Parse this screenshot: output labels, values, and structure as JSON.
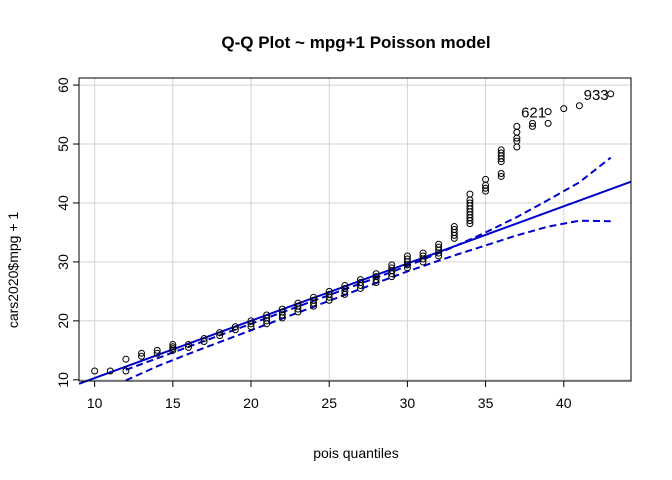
{
  "chart_data": {
    "type": "scatter",
    "title": "Q-Q Plot ~ mpg+1 Poisson model",
    "xlabel": "pois quantiles",
    "ylabel": "cars2020$mpg + 1",
    "xlim": [
      9.0,
      44.3
    ],
    "ylim": [
      9.8,
      61.2
    ],
    "xticks": [
      10,
      15,
      20,
      25,
      30,
      35,
      40
    ],
    "yticks": [
      10,
      20,
      30,
      40,
      50,
      60
    ],
    "grid": true,
    "colors": {
      "points": "#000000",
      "lines": "#0000CD",
      "grid": "#D3D3D3"
    },
    "points": [
      [
        10,
        11.5
      ],
      [
        11,
        11.5
      ],
      [
        12,
        11.5
      ],
      [
        12,
        13.5
      ],
      [
        13,
        14.0
      ],
      [
        13,
        14.5
      ],
      [
        14,
        14.5
      ],
      [
        14,
        15.0
      ],
      [
        15,
        15.0
      ],
      [
        15,
        15.3
      ],
      [
        15,
        15.6
      ],
      [
        15,
        16.0
      ],
      [
        16,
        15.5
      ],
      [
        16,
        16.0
      ],
      [
        17,
        16.5
      ],
      [
        17,
        17.0
      ],
      [
        18,
        17.5
      ],
      [
        18,
        18.0
      ],
      [
        19,
        18.5
      ],
      [
        19,
        19.0
      ],
      [
        20,
        19.0
      ],
      [
        20,
        19.5
      ],
      [
        20,
        20.0
      ],
      [
        21,
        19.5
      ],
      [
        21,
        20.0
      ],
      [
        21,
        20.5
      ],
      [
        21,
        21.0
      ],
      [
        22,
        20.5
      ],
      [
        22,
        21.0
      ],
      [
        22,
        21.5
      ],
      [
        22,
        22.0
      ],
      [
        23,
        21.5
      ],
      [
        23,
        22.0
      ],
      [
        23,
        22.5
      ],
      [
        23,
        23.0
      ],
      [
        24,
        22.5
      ],
      [
        24,
        23.0
      ],
      [
        24,
        23.5
      ],
      [
        24,
        24.0
      ],
      [
        25,
        23.5
      ],
      [
        25,
        24.0
      ],
      [
        25,
        24.5
      ],
      [
        25,
        25.0
      ],
      [
        26,
        24.5
      ],
      [
        26,
        25.0
      ],
      [
        26,
        25.5
      ],
      [
        26,
        26.0
      ],
      [
        27,
        25.5
      ],
      [
        27,
        26.0
      ],
      [
        27,
        26.5
      ],
      [
        27,
        27.0
      ],
      [
        28,
        26.5
      ],
      [
        28,
        27.0
      ],
      [
        28,
        27.5
      ],
      [
        28,
        28.0
      ],
      [
        29,
        27.5
      ],
      [
        29,
        28.0
      ],
      [
        29,
        28.5
      ],
      [
        29,
        29.0
      ],
      [
        29,
        29.5
      ],
      [
        30,
        29.0
      ],
      [
        30,
        29.5
      ],
      [
        30,
        30.0
      ],
      [
        30,
        30.5
      ],
      [
        30,
        31.0
      ],
      [
        31,
        30.0
      ],
      [
        31,
        30.5
      ],
      [
        31,
        31.0
      ],
      [
        31,
        31.5
      ],
      [
        32,
        31.0
      ],
      [
        32,
        31.5
      ],
      [
        32,
        32.0
      ],
      [
        32,
        32.5
      ],
      [
        32,
        33.0
      ],
      [
        33,
        34.0
      ],
      [
        33,
        34.5
      ],
      [
        33,
        35.0
      ],
      [
        33,
        35.5
      ],
      [
        33,
        36.0
      ],
      [
        34,
        36.5
      ],
      [
        34,
        37.0
      ],
      [
        34,
        37.5
      ],
      [
        34,
        38.0
      ],
      [
        34,
        38.5
      ],
      [
        34,
        39.0
      ],
      [
        34,
        39.5
      ],
      [
        34,
        40.0
      ],
      [
        34,
        40.5
      ],
      [
        34,
        41.5
      ],
      [
        35,
        42.0
      ],
      [
        35,
        42.5
      ],
      [
        35,
        43.0
      ],
      [
        35,
        44.0
      ],
      [
        36,
        44.5
      ],
      [
        36,
        45.0
      ],
      [
        36,
        47.0
      ],
      [
        36,
        47.5
      ],
      [
        36,
        48.0
      ],
      [
        36,
        48.5
      ],
      [
        36,
        49.0
      ],
      [
        37,
        49.5
      ],
      [
        37,
        50.5
      ],
      [
        37,
        51.0
      ],
      [
        37,
        52.0
      ],
      [
        37,
        53.0
      ],
      [
        38,
        53.0
      ],
      [
        38,
        53.5
      ],
      [
        39,
        53.5
      ],
      [
        39,
        55.5
      ],
      [
        40,
        56.0
      ],
      [
        41,
        56.5
      ],
      [
        43,
        58.5
      ]
    ],
    "fit_line": [
      [
        9.0,
        9.33
      ],
      [
        44.3,
        43.62
      ]
    ],
    "confidence_upper": [
      [
        12,
        11.7
      ],
      [
        16,
        15.6
      ],
      [
        20,
        19.5
      ],
      [
        24,
        23.4
      ],
      [
        28,
        27.3
      ],
      [
        30,
        29.3
      ],
      [
        33,
        32.6
      ],
      [
        35,
        35.0
      ],
      [
        37,
        37.6
      ],
      [
        39,
        40.5
      ],
      [
        41,
        43.5
      ],
      [
        43,
        47.7
      ]
    ],
    "confidence_lower": [
      [
        12,
        9.9
      ],
      [
        14,
        12.3
      ],
      [
        16,
        14.4
      ],
      [
        20,
        18.4
      ],
      [
        24,
        22.4
      ],
      [
        28,
        26.4
      ],
      [
        30,
        28.4
      ],
      [
        33,
        31.1
      ],
      [
        35,
        32.8
      ],
      [
        37,
        34.5
      ],
      [
        39,
        36.0
      ],
      [
        41,
        37.0
      ],
      [
        43,
        36.9
      ]
    ],
    "annotations": [
      {
        "label": "621",
        "x": 39,
        "y": 55.5
      },
      {
        "label": "933",
        "x": 43,
        "y": 58.5
      }
    ]
  }
}
